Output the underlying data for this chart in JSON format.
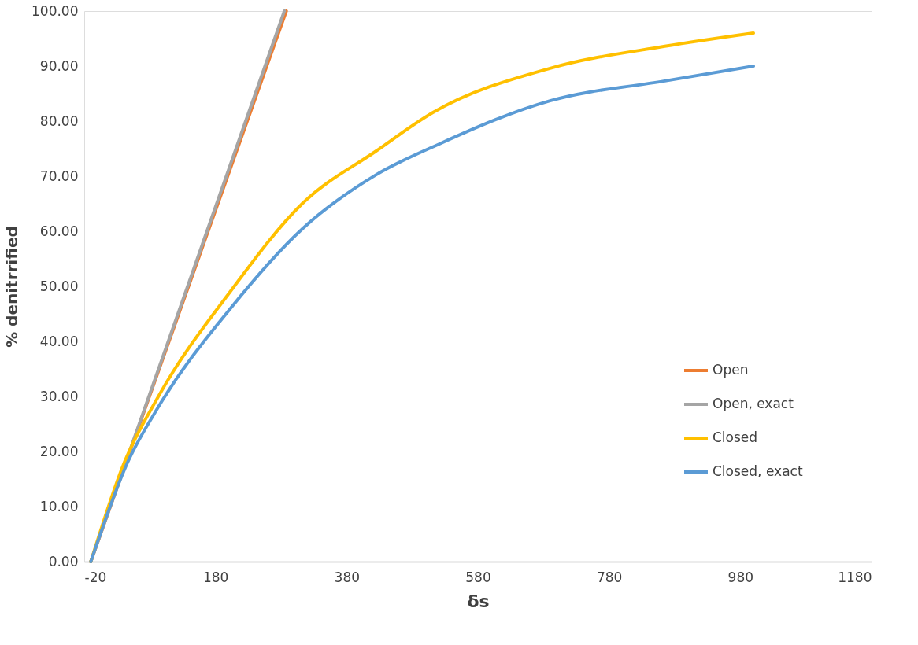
{
  "chart_data": {
    "type": "line",
    "xlabel": "δs",
    "ylabel": "% denitrrified",
    "xlim": [
      -20,
      1180
    ],
    "xticks": [
      -20,
      180,
      380,
      580,
      780,
      980,
      1180
    ],
    "ylim": [
      0,
      100
    ],
    "yticks": [
      {
        "value": 0,
        "label": "0.00"
      },
      {
        "value": 10,
        "label": "10.00"
      },
      {
        "value": 20,
        "label": "20.00"
      },
      {
        "value": 30,
        "label": "30.00"
      },
      {
        "value": 40,
        "label": "40.00"
      },
      {
        "value": 50,
        "label": "50.00"
      },
      {
        "value": 60,
        "label": "60.00"
      },
      {
        "value": 70,
        "label": "70.00"
      },
      {
        "value": 80,
        "label": "80.00"
      },
      {
        "value": 90,
        "label": "90.00"
      },
      {
        "value": 100,
        "label": "100.00"
      }
    ],
    "grid": false,
    "legend": "bottom right",
    "marker": "none",
    "line_style": "solid",
    "series": [
      {
        "name": "Open",
        "color": "#ed7d31",
        "x": [
          -10,
          288
        ],
        "values": [
          0,
          100
        ]
      },
      {
        "name": "Open, exact",
        "color": "#a5a5a5",
        "x": [
          -10,
          285
        ],
        "values": [
          0,
          100
        ]
      },
      {
        "name": "Closed",
        "color": "#ffc000",
        "x": [
          -10,
          41,
          93,
          203,
          313,
          424,
          512,
          690,
          865,
          1000
        ],
        "values": [
          0,
          18,
          30.0,
          49.1,
          65.1,
          74.5,
          81.6,
          89.6,
          93.6,
          96.0
        ]
      },
      {
        "name": "Closed, exact",
        "color": "#5b9bd5",
        "x": [
          -10,
          46,
          93,
          203,
          313,
          424,
          522,
          690,
          865,
          1000
        ],
        "values": [
          0,
          18,
          28.1,
          46.0,
          60.5,
          70.2,
          75.9,
          83.7,
          87.3,
          90.0
        ]
      }
    ]
  }
}
